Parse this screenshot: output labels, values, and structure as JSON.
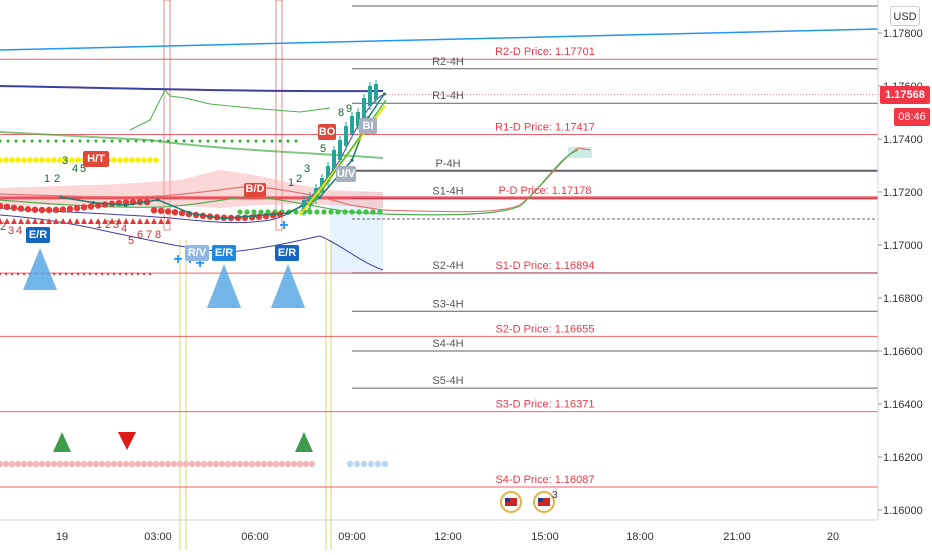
{
  "currency": "USD",
  "last_price": "1.17568",
  "countdown": "08:46",
  "colors": {
    "pivot_line": "#2a2e39",
    "daily_line": "#f23645",
    "ma_blue": "#2196f3",
    "ma_navy": "#3f3fa0",
    "candle_up": "#26a69a",
    "up_arrow": "#5aa9e6"
  },
  "chart_data": {
    "type": "line",
    "series": [
      {
        "x": [
          "00:00",
          "01:00",
          "02:00",
          "03:00",
          "04:00",
          "05:00",
          "06:00",
          "07:00",
          "08:00",
          "09:00",
          "09:30",
          "10:00"
        ],
        "values": [
          1.1718,
          1.1716,
          1.1715,
          1.1717,
          1.1712,
          1.171,
          1.1711,
          1.1712,
          1.1718,
          1.1732,
          1.1748,
          1.1757
        ]
      }
    ],
    "ylim": [
      1.1598,
      1.1786
    ],
    "y_ticks": [
      "1.17800",
      "1.17600",
      "1.17400",
      "1.17200",
      "1.17000",
      "1.16800",
      "1.16600",
      "1.16400",
      "1.16200",
      "1.16000"
    ],
    "x_ticks": [
      "19",
      "03:00",
      "06:00",
      "09:00",
      "12:00",
      "15:00",
      "18:00",
      "21:00",
      "20"
    ],
    "pivot_levels": [
      {
        "label": "R2-4H",
        "value": 1.17665
      },
      {
        "label": "R1-4H",
        "value": 1.17535
      },
      {
        "label": "P-4H",
        "value": 1.1728
      },
      {
        "label": "S1-4H",
        "value": 1.17175
      },
      {
        "label": "S2-4H",
        "value": 1.16895
      },
      {
        "label": "S3-4H",
        "value": 1.1675
      },
      {
        "label": "S4-4H",
        "value": 1.166
      },
      {
        "label": "S5-4H",
        "value": 1.1646
      }
    ],
    "daily_levels": [
      {
        "label": "R2-D Price: 1.17701",
        "value": 1.17701
      },
      {
        "label": "R1-D Price: 1.17417",
        "value": 1.17417
      },
      {
        "label": "P-D Price: 1.17178",
        "value": 1.17178
      },
      {
        "label": "S1-D Price: 1.16894",
        "value": 1.16894
      },
      {
        "label": "S2-D Price: 1.16655",
        "value": 1.16655
      },
      {
        "label": "S3-D Price: 1.16371",
        "value": 1.16371
      },
      {
        "label": "S4-D Price: 1.16087",
        "value": 1.16087
      }
    ],
    "annotations": [
      "H/T",
      "E/R",
      "E/R",
      "E/R",
      "R/V",
      "B/D",
      "U/V",
      "BO",
      "BI"
    ],
    "seq_counts": [
      "1",
      "2",
      "3",
      "4",
      "5",
      "6",
      "7",
      "8",
      "9"
    ],
    "event_badge_count": "3"
  }
}
